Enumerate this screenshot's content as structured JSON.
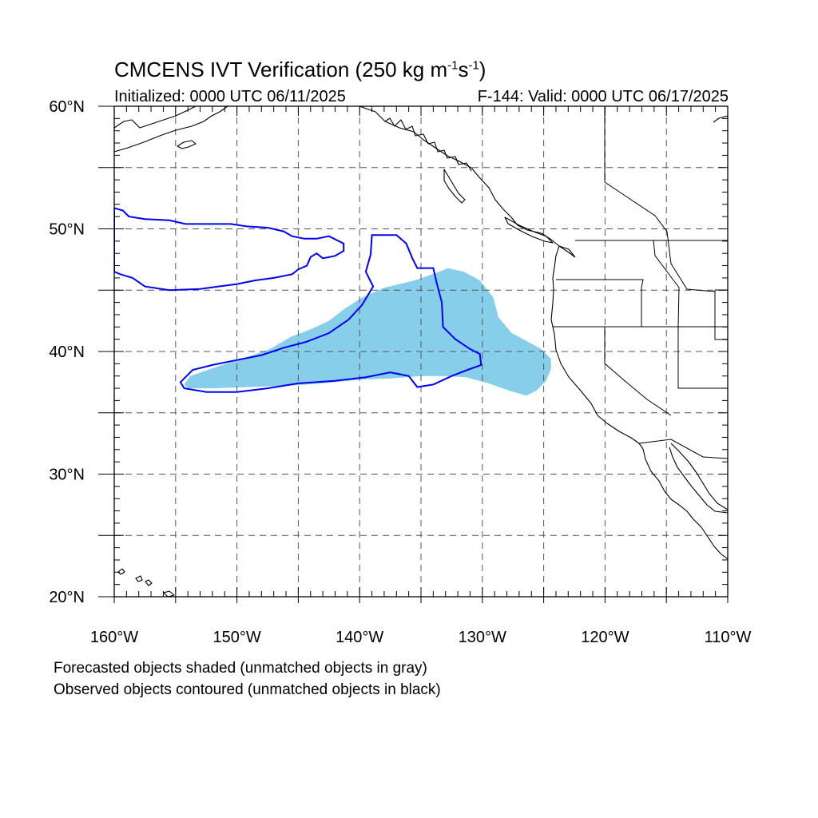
{
  "title": {
    "main": "CMCENS IVT Verification (250 kg m",
    "exp1": "-1",
    "mid": "s",
    "exp2": "-1",
    "close": ")"
  },
  "subtitle": {
    "initialized": "Initialized: 0000 UTC 06/11/2025",
    "valid": "F-144: Valid: 0000 UTC 06/17/2025"
  },
  "lat_labels": [
    "60°N",
    "50°N",
    "40°N",
    "30°N",
    "20°N"
  ],
  "lon_labels": [
    "160°W",
    "150°W",
    "140°W",
    "130°W",
    "120°W",
    "110°W"
  ],
  "footnotes": [
    "Forecasted objects shaded (unmatched objects in gray)",
    "Observed objects contoured (unmatched objects in black)"
  ],
  "colors": {
    "forecast_fill": "#87CEEB",
    "observed_contour": "#0000EE",
    "coastline": "#000000",
    "grid": "#555555"
  },
  "chart_data": {
    "type": "map",
    "projection": "cylindrical-equidistant",
    "lon_range": [
      -160,
      -110
    ],
    "lat_range": [
      20,
      60
    ],
    "grid_lons": [
      -155,
      -150,
      -145,
      -140,
      -135,
      -130,
      -125,
      -120,
      -115
    ],
    "grid_lats": [
      25,
      30,
      35,
      40,
      45,
      50,
      55
    ],
    "forecast_object": [
      [
        -154.3,
        37.3
      ],
      [
        -153.8,
        38.0
      ],
      [
        -151.5,
        38.8
      ],
      [
        -149.3,
        39.5
      ],
      [
        -147.3,
        40.2
      ],
      [
        -145.6,
        41.2
      ],
      [
        -144.0,
        41.8
      ],
      [
        -142.5,
        42.5
      ],
      [
        -141.2,
        43.5
      ],
      [
        -139.8,
        44.4
      ],
      [
        -138.0,
        45.2
      ],
      [
        -135.5,
        45.8
      ],
      [
        -133.5,
        46.5
      ],
      [
        -132.8,
        46.8
      ],
      [
        -131.5,
        46.5
      ],
      [
        -130.2,
        45.8
      ],
      [
        -129.1,
        44.4
      ],
      [
        -128.7,
        42.8
      ],
      [
        -127.6,
        41.5
      ],
      [
        -125.2,
        40.2
      ],
      [
        -124.4,
        39.4
      ],
      [
        -124.4,
        38.6
      ],
      [
        -124.8,
        37.6
      ],
      [
        -125.6,
        36.8
      ],
      [
        -126.4,
        36.4
      ],
      [
        -127.8,
        36.8
      ],
      [
        -129.5,
        37.4
      ],
      [
        -131.3,
        37.9
      ],
      [
        -133.2,
        38.0
      ],
      [
        -135.0,
        38.0
      ],
      [
        -137.5,
        37.8
      ],
      [
        -140.0,
        37.7
      ],
      [
        -143.0,
        37.4
      ],
      [
        -146.0,
        37.2
      ],
      [
        -149.0,
        37.1
      ],
      [
        -152.0,
        37.0
      ],
      [
        -154.0,
        37.0
      ]
    ],
    "observed_contours": [
      [
        [
          -160.0,
          51.7
        ],
        [
          -159.3,
          51.5
        ],
        [
          -158.8,
          51.0
        ],
        [
          -157.5,
          50.8
        ],
        [
          -155.5,
          50.7
        ],
        [
          -154.2,
          50.4
        ],
        [
          -150.5,
          50.4
        ],
        [
          -149.2,
          50.2
        ],
        [
          -147.5,
          50.1
        ],
        [
          -146.2,
          49.8
        ],
        [
          -145.5,
          49.4
        ],
        [
          -144.5,
          49.2
        ],
        [
          -143.5,
          49.2
        ],
        [
          -142.5,
          49.4
        ],
        [
          -141.3,
          48.8
        ],
        [
          -141.3,
          48.2
        ],
        [
          -142.0,
          47.8
        ],
        [
          -143.0,
          47.6
        ],
        [
          -143.5,
          48.0
        ],
        [
          -144.0,
          47.7
        ],
        [
          -144.3,
          47.0
        ],
        [
          -145.0,
          46.7
        ],
        [
          -145.5,
          46.3
        ],
        [
          -147.0,
          46.0
        ],
        [
          -148.5,
          45.8
        ],
        [
          -150.0,
          45.5
        ],
        [
          -151.5,
          45.3
        ],
        [
          -153.0,
          45.1
        ],
        [
          -155.5,
          45.0
        ],
        [
          -157.5,
          45.3
        ],
        [
          -158.5,
          46.0
        ],
        [
          -159.5,
          46.3
        ],
        [
          -160.0,
          46.5
        ]
      ],
      [
        [
          -154.6,
          37.5
        ],
        [
          -153.6,
          38.5
        ],
        [
          -152.0,
          38.9
        ],
        [
          -150.0,
          39.3
        ],
        [
          -148.0,
          39.7
        ],
        [
          -146.2,
          40.3
        ],
        [
          -144.3,
          40.8
        ],
        [
          -142.5,
          41.5
        ],
        [
          -140.9,
          42.6
        ],
        [
          -139.8,
          43.8
        ],
        [
          -138.9,
          45.3
        ],
        [
          -139.5,
          46.5
        ],
        [
          -139.1,
          47.9
        ],
        [
          -139.0,
          49.5
        ],
        [
          -137.0,
          49.5
        ],
        [
          -136.2,
          48.8
        ],
        [
          -135.7,
          47.6
        ],
        [
          -135.3,
          46.8
        ],
        [
          -134.0,
          46.8
        ],
        [
          -133.7,
          45.5
        ],
        [
          -133.3,
          44.0
        ],
        [
          -133.2,
          42.0
        ],
        [
          -132.2,
          41.0
        ],
        [
          -131.0,
          40.2
        ],
        [
          -130.2,
          39.8
        ],
        [
          -130.1,
          38.9
        ],
        [
          -131.2,
          38.5
        ],
        [
          -132.5,
          38.0
        ],
        [
          -134.0,
          37.3
        ],
        [
          -135.3,
          37.1
        ],
        [
          -136.0,
          38.0
        ],
        [
          -137.5,
          38.3
        ],
        [
          -139.5,
          37.9
        ],
        [
          -142.0,
          37.6
        ],
        [
          -145.0,
          37.4
        ],
        [
          -147.5,
          37.0
        ],
        [
          -150.0,
          36.7
        ],
        [
          -152.5,
          36.7
        ],
        [
          -154.3,
          37.0
        ]
      ]
    ]
  }
}
